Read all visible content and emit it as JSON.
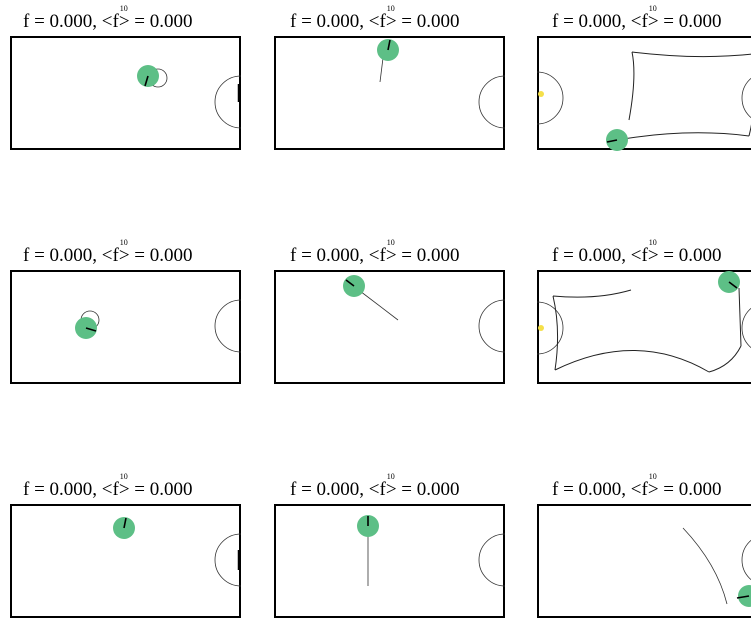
{
  "grid": {
    "panels": [
      {
        "id": "r1c1",
        "title": {
          "f_label": "f = 0.000,",
          "avg_prefix": "<f",
          "avg_sup": "10",
          "avg_suffix": "> = 0.000"
        },
        "goal_side": "right",
        "trail": "arc-small",
        "robot": {
          "heading": "up"
        }
      },
      {
        "id": "r1c2",
        "title": {
          "f_label": "f = 0.000,",
          "avg_prefix": "<f",
          "avg_sup": "10",
          "avg_suffix": "> = 0.000"
        },
        "goal_side": "right",
        "trail": "line-down",
        "robot": {
          "heading": "up"
        }
      },
      {
        "id": "r1c3",
        "title": {
          "f_label": "f = 0.000,",
          "avg_prefix": "<f",
          "avg_sup": "10",
          "avg_suffix": "> = 0.000"
        },
        "goal_side": "both",
        "trail": "loop",
        "robot": {
          "heading": "left"
        },
        "ball": true
      },
      {
        "id": "r2c1",
        "title": {
          "f_label": "f = 0.000,",
          "avg_prefix": "<f",
          "avg_sup": "10",
          "avg_suffix": "> = 0.000"
        },
        "goal_side": "right",
        "trail": "arc-small",
        "robot": {
          "heading": "right"
        }
      },
      {
        "id": "r2c2",
        "title": {
          "f_label": "f = 0.000,",
          "avg_prefix": "<f",
          "avg_sup": "10",
          "avg_suffix": "> = 0.000"
        },
        "goal_side": "right",
        "trail": "diag",
        "robot": {
          "heading": "upleft"
        }
      },
      {
        "id": "r2c3",
        "title": {
          "f_label": "f = 0.000,",
          "avg_prefix": "<f",
          "avg_sup": "10",
          "avg_suffix": "> = 0.000"
        },
        "goal_side": "both",
        "trail": "loop2",
        "robot": {
          "heading": "left"
        },
        "ball": true
      },
      {
        "id": "r3c1",
        "title": {
          "f_label": "f = 0.000,",
          "avg_prefix": "<f",
          "avg_sup": "10",
          "avg_suffix": "> = 0.000"
        },
        "goal_side": "right",
        "trail": "none",
        "robot": {
          "heading": "up"
        }
      },
      {
        "id": "r3c2",
        "title": {
          "f_label": "f = 0.000,",
          "avg_prefix": "<f",
          "avg_sup": "10",
          "avg_suffix": "> = 0.000"
        },
        "goal_side": "right",
        "trail": "line-down-long",
        "robot": {
          "heading": "up"
        }
      },
      {
        "id": "r3c3",
        "title": {
          "f_label": "f = 0.000,",
          "avg_prefix": "<f",
          "avg_sup": "10",
          "avg_suffix": "> = 0.000"
        },
        "goal_side": "right",
        "trail": "curve",
        "robot": {
          "heading": "left"
        }
      }
    ]
  },
  "colors": {
    "robot": "#5dbf86",
    "ball": "#f5e04a",
    "line": "#000000",
    "goal": "#333333"
  }
}
